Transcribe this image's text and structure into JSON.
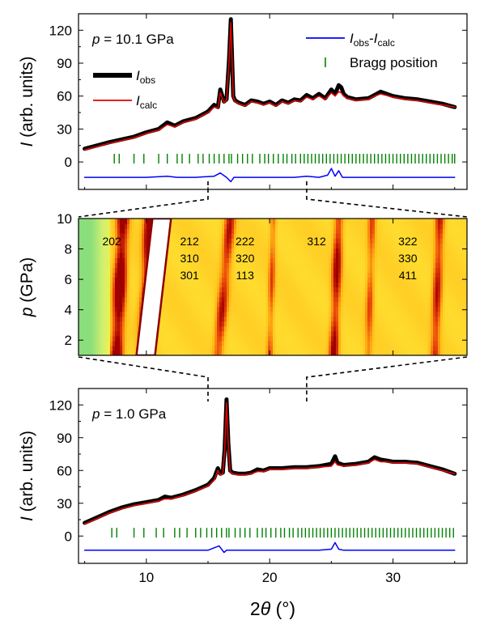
{
  "chart_data": [
    {
      "type": "line",
      "panel": "top",
      "annotation": "p = 10.1 GPa",
      "annotation_parts": {
        "var": "p",
        "rest": " = 10.1 GPa"
      },
      "ylabel": "I (arb. units)",
      "ylabel_parts": {
        "var": "I",
        "rest": " (arb. units)"
      },
      "xlim": [
        4.5,
        36
      ],
      "ylim": [
        -25,
        135
      ],
      "y_ticks": [
        0,
        30,
        60,
        90,
        120
      ],
      "legend": [
        {
          "key": "obs",
          "label": "I",
          "sub": "obs",
          "color": "#000000"
        },
        {
          "key": "calc",
          "label": "I",
          "sub": "calc",
          "color": "#e00000"
        },
        {
          "key": "diff",
          "label": "I",
          "sub": "obs",
          "mid": "-",
          "label2": "I",
          "sub2": "calc",
          "color": "#0000ff"
        },
        {
          "key": "bragg",
          "label": "Bragg position",
          "color": "#008000"
        }
      ],
      "series": [
        {
          "key": "obs",
          "color": "#000000",
          "x": [
            5,
            7,
            9,
            10,
            11,
            11.7,
            12.3,
            13,
            14,
            14.5,
            15,
            15.5,
            15.8,
            16,
            16.3,
            16.5,
            16.7,
            16.85,
            16.95,
            17.05,
            17.2,
            17.5,
            18,
            18.5,
            19,
            19.5,
            20,
            20.5,
            21,
            21.5,
            22,
            22.5,
            23,
            23.5,
            24,
            24.5,
            25,
            25.3,
            25.6,
            25.8,
            26,
            26.3,
            27,
            28,
            28.5,
            29,
            30,
            31,
            32,
            33,
            34,
            35
          ],
          "y": [
            12,
            18,
            23,
            27,
            30,
            36,
            33,
            37,
            40,
            43,
            46,
            52,
            50,
            66,
            55,
            57,
            92,
            130,
            95,
            60,
            56,
            54,
            52,
            56,
            55,
            53,
            55,
            52,
            56,
            54,
            57,
            56,
            61,
            58,
            62,
            58,
            66,
            62,
            70,
            68,
            62,
            59,
            57,
            58,
            61,
            64,
            60,
            58,
            57,
            55,
            53,
            50
          ]
        },
        {
          "key": "calc",
          "color": "#e00000",
          "x": [
            5,
            7,
            9,
            10,
            11,
            11.7,
            12.3,
            13,
            14,
            14.5,
            15,
            15.5,
            15.8,
            16,
            16.3,
            16.5,
            16.7,
            16.85,
            16.95,
            17.05,
            17.2,
            17.5,
            18,
            18.5,
            19,
            19.5,
            20,
            20.5,
            21,
            21.5,
            22,
            22.5,
            23,
            23.5,
            24,
            24.5,
            25,
            25.3,
            25.6,
            25.8,
            26,
            26.3,
            27,
            28,
            28.5,
            29,
            30,
            31,
            32,
            33,
            34,
            35
          ],
          "y": [
            11,
            17,
            22,
            26,
            29,
            34,
            32,
            36,
            39,
            42,
            45,
            50,
            49,
            63,
            54,
            56,
            90,
            127,
            93,
            59,
            55,
            53,
            51,
            55,
            54,
            52,
            54,
            51,
            55,
            53,
            56,
            55,
            59,
            57,
            60,
            57,
            63,
            60,
            64,
            63,
            60,
            58,
            56,
            57,
            60,
            62,
            59,
            57,
            56,
            54,
            52,
            50
          ]
        },
        {
          "key": "diff",
          "color": "#0000ff",
          "x": [
            5,
            8,
            10,
            11.7,
            12.5,
            14,
            15.5,
            16,
            16.5,
            16.85,
            17.1,
            17.5,
            18,
            19,
            20,
            21,
            22,
            23,
            24,
            24.7,
            25,
            25.3,
            25.6,
            25.9,
            26.3,
            27,
            28,
            30,
            32,
            34,
            35
          ],
          "y": [
            -14,
            -14,
            -14,
            -13,
            -14,
            -14,
            -13,
            -10,
            -14,
            -18,
            -14,
            -14,
            -14,
            -14,
            -14,
            -14,
            -14,
            -13,
            -14,
            -12,
            -6,
            -13,
            -8,
            -14,
            -14,
            -14,
            -14,
            -14,
            -14,
            -14,
            -14
          ]
        },
        {
          "key": "bragg",
          "color": "#008000",
          "x": [
            7.4,
            7.8,
            9.0,
            9.8,
            11.0,
            11.7,
            12.5,
            12.9,
            13.5,
            14.2,
            14.6,
            15.1,
            15.5,
            15.9,
            16.3,
            16.7,
            16.9,
            17.4,
            17.8,
            18.2,
            18.6,
            19.2,
            19.6,
            19.9,
            20.3,
            20.7,
            21.1,
            21.4,
            21.8,
            22.1,
            22.5,
            22.8,
            23.1,
            23.4,
            23.7,
            24.0,
            24.3,
            24.6,
            24.9,
            25.2,
            25.5,
            25.8,
            26.1,
            26.4,
            26.7,
            27.0,
            27.3,
            27.6,
            27.9,
            28.2,
            28.5,
            28.8,
            29.1,
            29.4,
            29.7,
            30.0,
            30.3,
            30.6,
            30.9,
            31.2,
            31.5,
            31.8,
            32.1,
            32.4,
            32.7,
            33.0,
            33.3,
            33.6,
            33.9,
            34.2,
            34.5,
            34.8,
            35.0
          ]
        }
      ]
    },
    {
      "type": "heatmap",
      "panel": "middle",
      "ylabel": "p (GPa)",
      "ylabel_parts": {
        "var": "p",
        "rest": " (GPa)"
      },
      "xlim": [
        4.5,
        36
      ],
      "ylim": [
        1,
        10
      ],
      "y_ticks": [
        2,
        4,
        6,
        8,
        10
      ],
      "peak_labels": [
        {
          "x": 7.2,
          "lines": [
            "202"
          ]
        },
        {
          "x": 13.5,
          "lines": [
            "212",
            "310",
            "301"
          ]
        },
        {
          "x": 18.0,
          "lines": [
            "222",
            "320",
            "113"
          ]
        },
        {
          "x": 23.8,
          "lines": [
            "312"
          ]
        },
        {
          "x": 31.2,
          "lines": [
            "322",
            "330",
            "411"
          ]
        }
      ],
      "bands": [
        {
          "x_low_p": 7.6,
          "x_high_p": 8.1,
          "strength": 0.95,
          "width": 0.9
        },
        {
          "x_low_p": 9.9,
          "x_high_p": 10.4,
          "strength": 1.0,
          "width": 1.0
        },
        {
          "x_low_p": 15.8,
          "x_high_p": 16.8,
          "strength": 0.55,
          "width": 0.8
        },
        {
          "x_low_p": 20.0,
          "x_high_p": 20.3,
          "strength": 0.35,
          "width": 0.5
        },
        {
          "x_low_p": 25.2,
          "x_high_p": 25.6,
          "strength": 0.65,
          "width": 0.7
        },
        {
          "x_low_p": 28.0,
          "x_high_p": 28.3,
          "strength": 0.35,
          "width": 0.6
        },
        {
          "x_low_p": 33.4,
          "x_high_p": 33.8,
          "strength": 0.55,
          "width": 0.7
        }
      ],
      "saturated_band": {
        "x_low_p": [
          9.2,
          10.7
        ],
        "x_high_p": [
          10.5,
          12.0
        ]
      }
    },
    {
      "type": "line",
      "panel": "bottom",
      "annotation": "p = 1.0 GPa",
      "annotation_parts": {
        "var": "p",
        "rest": " = 1.0 GPa"
      },
      "ylabel": "I (arb. units)",
      "ylabel_parts": {
        "var": "I",
        "rest": " (arb. units)"
      },
      "xlabel": "2θ (°)",
      "xlabel_parts": {
        "pre": "2",
        "var": "θ",
        "rest": " (°)"
      },
      "xlim": [
        4.5,
        36
      ],
      "ylim": [
        -25,
        135
      ],
      "x_ticks": [
        10,
        20,
        30
      ],
      "y_ticks": [
        0,
        30,
        60,
        90,
        120
      ],
      "series": [
        {
          "key": "obs",
          "color": "#000000",
          "x": [
            5,
            6,
            7,
            8,
            9,
            10,
            11,
            11.5,
            12,
            13,
            14,
            15,
            15.5,
            15.8,
            16,
            16.2,
            16.35,
            16.5,
            16.65,
            16.8,
            17,
            17.5,
            18,
            18.5,
            19,
            19.5,
            20,
            21,
            22,
            23,
            24,
            25,
            25.3,
            25.5,
            26,
            27,
            28,
            28.5,
            29,
            29.5,
            30,
            31,
            32,
            33,
            34,
            35
          ],
          "y": [
            12,
            17,
            22,
            26,
            29,
            31,
            33,
            36,
            35,
            38,
            42,
            47,
            53,
            62,
            57,
            58,
            80,
            125,
            85,
            60,
            58,
            57,
            57,
            58,
            61,
            60,
            62,
            62,
            63,
            63,
            64,
            66,
            73,
            67,
            65,
            66,
            68,
            72,
            70,
            69,
            68,
            68,
            67,
            64,
            61,
            57
          ]
        },
        {
          "key": "calc",
          "color": "#e00000",
          "x": [
            5,
            6,
            7,
            8,
            9,
            10,
            11,
            11.5,
            12,
            13,
            14,
            15,
            15.5,
            15.8,
            16,
            16.2,
            16.35,
            16.5,
            16.65,
            16.8,
            17,
            17.5,
            18,
            18.5,
            19,
            19.5,
            20,
            21,
            22,
            23,
            24,
            25,
            25.3,
            25.5,
            26,
            27,
            28,
            28.5,
            29,
            29.5,
            30,
            31,
            32,
            33,
            34,
            35
          ],
          "y": [
            11,
            16,
            21,
            25,
            28,
            30,
            32,
            34,
            34,
            37,
            41,
            46,
            51,
            60,
            56,
            57,
            78,
            122,
            83,
            59,
            57,
            56,
            56,
            57,
            59,
            59,
            61,
            61,
            62,
            62,
            63,
            64,
            68,
            65,
            64,
            65,
            67,
            70,
            68,
            68,
            67,
            67,
            66,
            63,
            60,
            57
          ]
        },
        {
          "key": "diff",
          "color": "#0000ff",
          "x": [
            5,
            8,
            10,
            12,
            14,
            15,
            15.9,
            16.3,
            16.5,
            17,
            18,
            20,
            22,
            24,
            25,
            25.3,
            25.6,
            26,
            28,
            30,
            32,
            35
          ],
          "y": [
            -13,
            -13,
            -13,
            -13,
            -13,
            -13,
            -9,
            -15,
            -13,
            -13,
            -13,
            -13,
            -13,
            -13,
            -12,
            -6,
            -12,
            -13,
            -13,
            -13,
            -13,
            -13
          ]
        },
        {
          "key": "bragg",
          "color": "#008000",
          "x": [
            7.2,
            7.6,
            9.0,
            9.8,
            10.8,
            11.4,
            12.3,
            12.7,
            13.3,
            14.0,
            14.4,
            14.9,
            15.3,
            15.7,
            16.1,
            16.5,
            16.7,
            17.2,
            17.6,
            18.0,
            18.4,
            19.0,
            19.4,
            19.7,
            20.1,
            20.5,
            20.9,
            21.2,
            21.6,
            21.9,
            22.3,
            22.6,
            22.9,
            23.2,
            23.5,
            23.8,
            24.1,
            24.4,
            24.7,
            25.0,
            25.3,
            25.6,
            25.9,
            26.2,
            26.5,
            26.8,
            27.1,
            27.4,
            27.7,
            28.0,
            28.3,
            28.6,
            28.9,
            29.2,
            29.5,
            29.8,
            30.1,
            30.4,
            30.7,
            31.0,
            31.3,
            31.6,
            31.9,
            32.2,
            32.5,
            32.8,
            33.1,
            33.4,
            33.7,
            34.0,
            34.3,
            34.6,
            34.9
          ]
        }
      ]
    }
  ]
}
